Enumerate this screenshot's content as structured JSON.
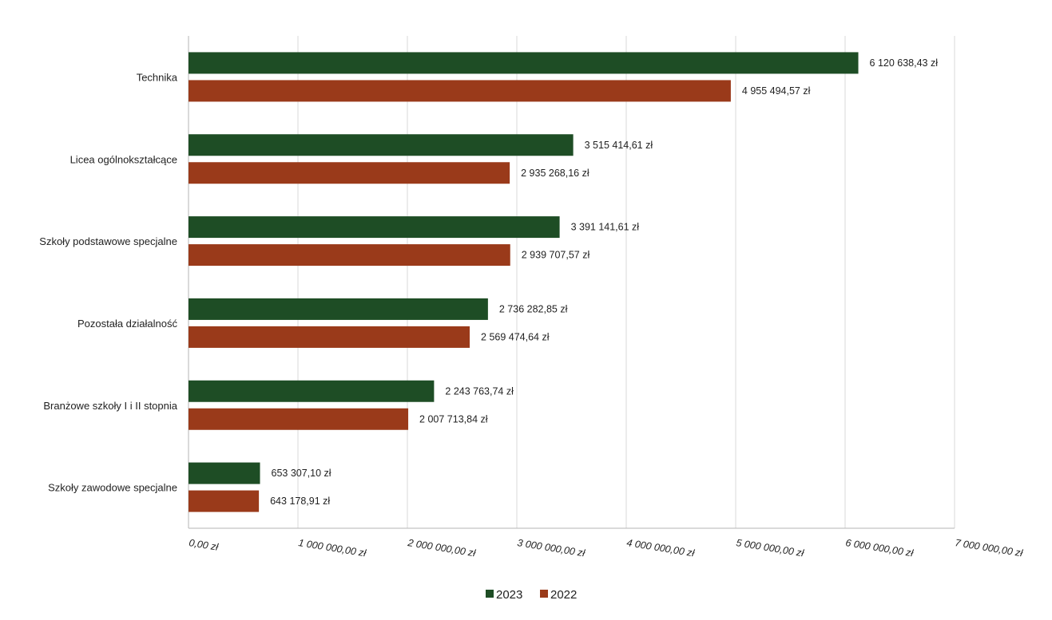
{
  "chart_data": {
    "type": "bar",
    "orientation": "horizontal",
    "title": "",
    "xlabel": "",
    "ylabel": "",
    "categories": [
      "Technika",
      "Licea ogólnokształcące",
      "Szkoły podstawowe specjalne",
      "Pozostała działalność",
      "Branżowe szkoły I i II stopnia",
      "Szkoły zawodowe specjalne"
    ],
    "series": [
      {
        "name": "2023",
        "color": "#1e4d25",
        "values": [
          6120638.43,
          3515414.61,
          3391141.61,
          2736282.85,
          2243763.74,
          653307.1
        ],
        "labels": [
          "6 120 638,43 zł",
          "3 515 414,61 zł",
          "3 391 141,61 zł",
          "2 736 282,85 zł",
          "2 243 763,74 zł",
          "653 307,10 zł"
        ]
      },
      {
        "name": "2022",
        "color": "#9a3a1a",
        "values": [
          4955494.57,
          2935268.16,
          2939707.57,
          2569474.64,
          2007713.84,
          643178.91
        ],
        "labels": [
          "4 955 494,57 zł",
          "2 935 268,16 zł",
          "2 939 707,57 zł",
          "2 569 474,64 zł",
          "2 007 713,84 zł",
          "643 178,91 zł"
        ]
      }
    ],
    "xlim": [
      0,
      7000000
    ],
    "ticks": [
      0,
      1000000,
      2000000,
      3000000,
      4000000,
      5000000,
      6000000,
      7000000
    ],
    "tick_labels": [
      "0,00 zł",
      "1 000 000,00 zł",
      "2 000 000,00 zł",
      "3 000 000,00 zł",
      "4 000 000,00 zł",
      "5 000 000,00 zł",
      "6 000 000,00 zł",
      "7 000 000,00 zł"
    ],
    "grid": true,
    "legend": {
      "position": "bottom",
      "entries": [
        "2023",
        "2022"
      ]
    }
  }
}
